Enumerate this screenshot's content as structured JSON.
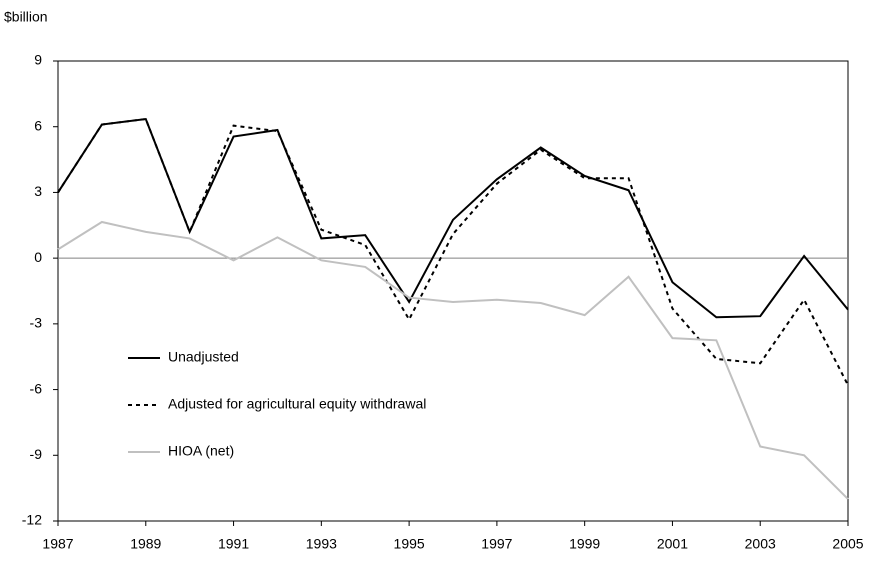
{
  "chart_data": {
    "type": "line",
    "y_label": "$billion",
    "x": [
      1987,
      1988,
      1989,
      1990,
      1991,
      1992,
      1993,
      1994,
      1995,
      1996,
      1997,
      1998,
      1999,
      2000,
      2001,
      2002,
      2003,
      2004,
      2005
    ],
    "series": [
      {
        "name": "Unadjusted",
        "color": "#000000",
        "dash": "solid",
        "values": [
          3.0,
          6.1,
          6.35,
          1.2,
          5.55,
          5.85,
          0.9,
          1.05,
          -2.0,
          1.75,
          3.6,
          5.05,
          3.75,
          3.1,
          -1.1,
          -2.7,
          -2.65,
          0.1,
          -2.35
        ]
      },
      {
        "name": "Adjusted for agricultural equity withdrawal",
        "color": "#000000",
        "dash": "dotted",
        "values": [
          3.0,
          6.1,
          6.35,
          1.2,
          6.05,
          5.8,
          1.3,
          0.6,
          -2.8,
          1.1,
          3.4,
          4.95,
          3.65,
          3.65,
          -2.3,
          -4.6,
          -4.8,
          -1.9,
          -5.8
        ]
      },
      {
        "name": "HIOA (net)",
        "color": "#c0c0c0",
        "dash": "solid",
        "values": [
          0.4,
          1.65,
          1.2,
          0.9,
          -0.1,
          0.95,
          -0.1,
          -0.4,
          -1.8,
          -2.0,
          -1.9,
          -2.05,
          -2.6,
          -0.85,
          -3.65,
          -3.75,
          -8.6,
          -9.0,
          -11.0
        ]
      }
    ],
    "xlim": [
      1987,
      2005
    ],
    "xticks": [
      1987,
      1989,
      1991,
      1993,
      1995,
      1997,
      1999,
      2001,
      2003,
      2005
    ],
    "ylim": [
      -12,
      9
    ],
    "yticks": [
      -12,
      -9,
      -6,
      -3,
      0,
      3,
      6,
      9
    ],
    "zero_line": true,
    "legend": "left"
  }
}
